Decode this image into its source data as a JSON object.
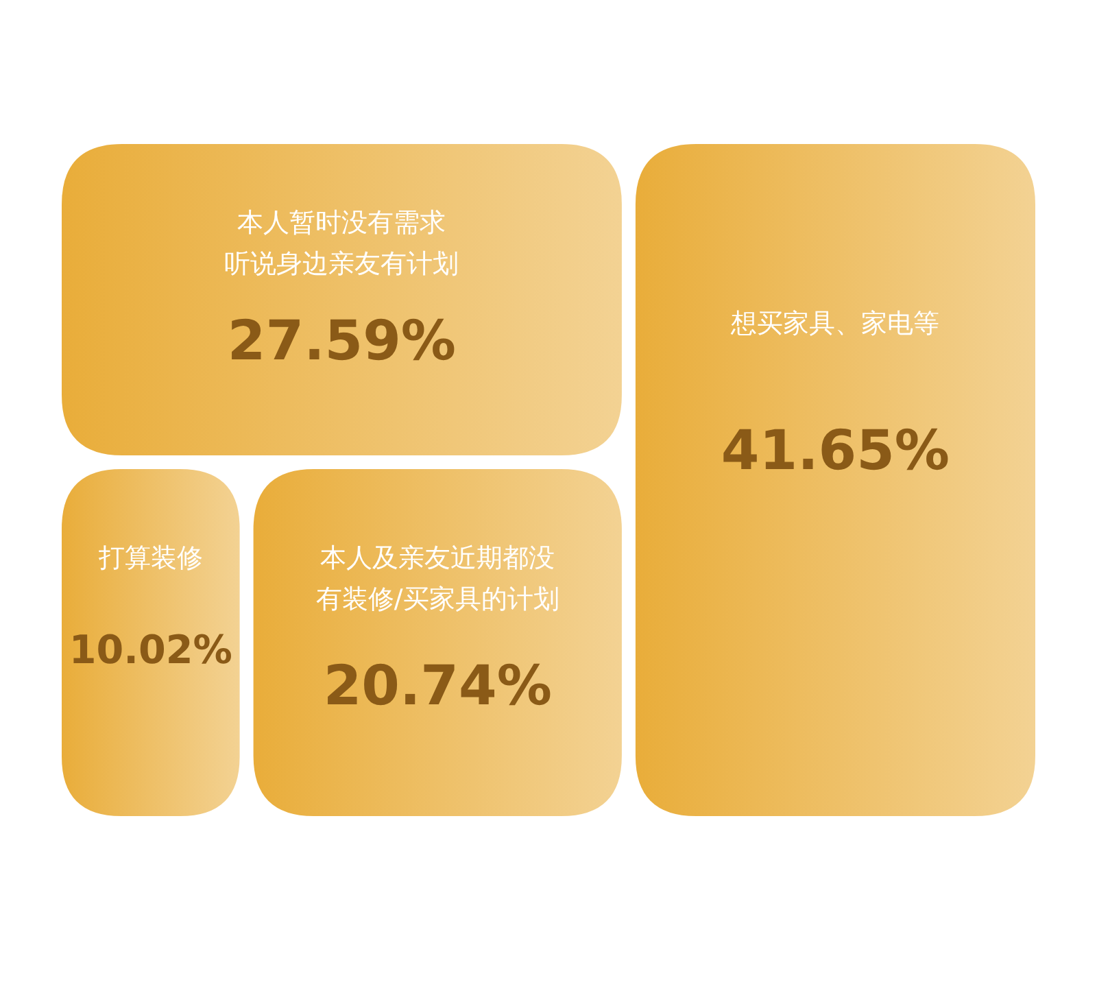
{
  "chart_data": {
    "type": "other",
    "categories": [
      "本人暂时没有需求听说身边亲友有计划",
      "想买家具、家电等",
      "打算装修",
      "本人及亲友近期都没有装修/买家具的计划"
    ],
    "values": [
      27.59,
      41.65,
      10.02,
      20.74
    ],
    "value_labels": [
      "27.59%",
      "41.65%",
      "10.02%",
      "20.74%"
    ],
    "colors": [
      "#e9ad3a",
      "#e9ad3a",
      "#e9ad3a",
      "#e9ad3a"
    ]
  }
}
